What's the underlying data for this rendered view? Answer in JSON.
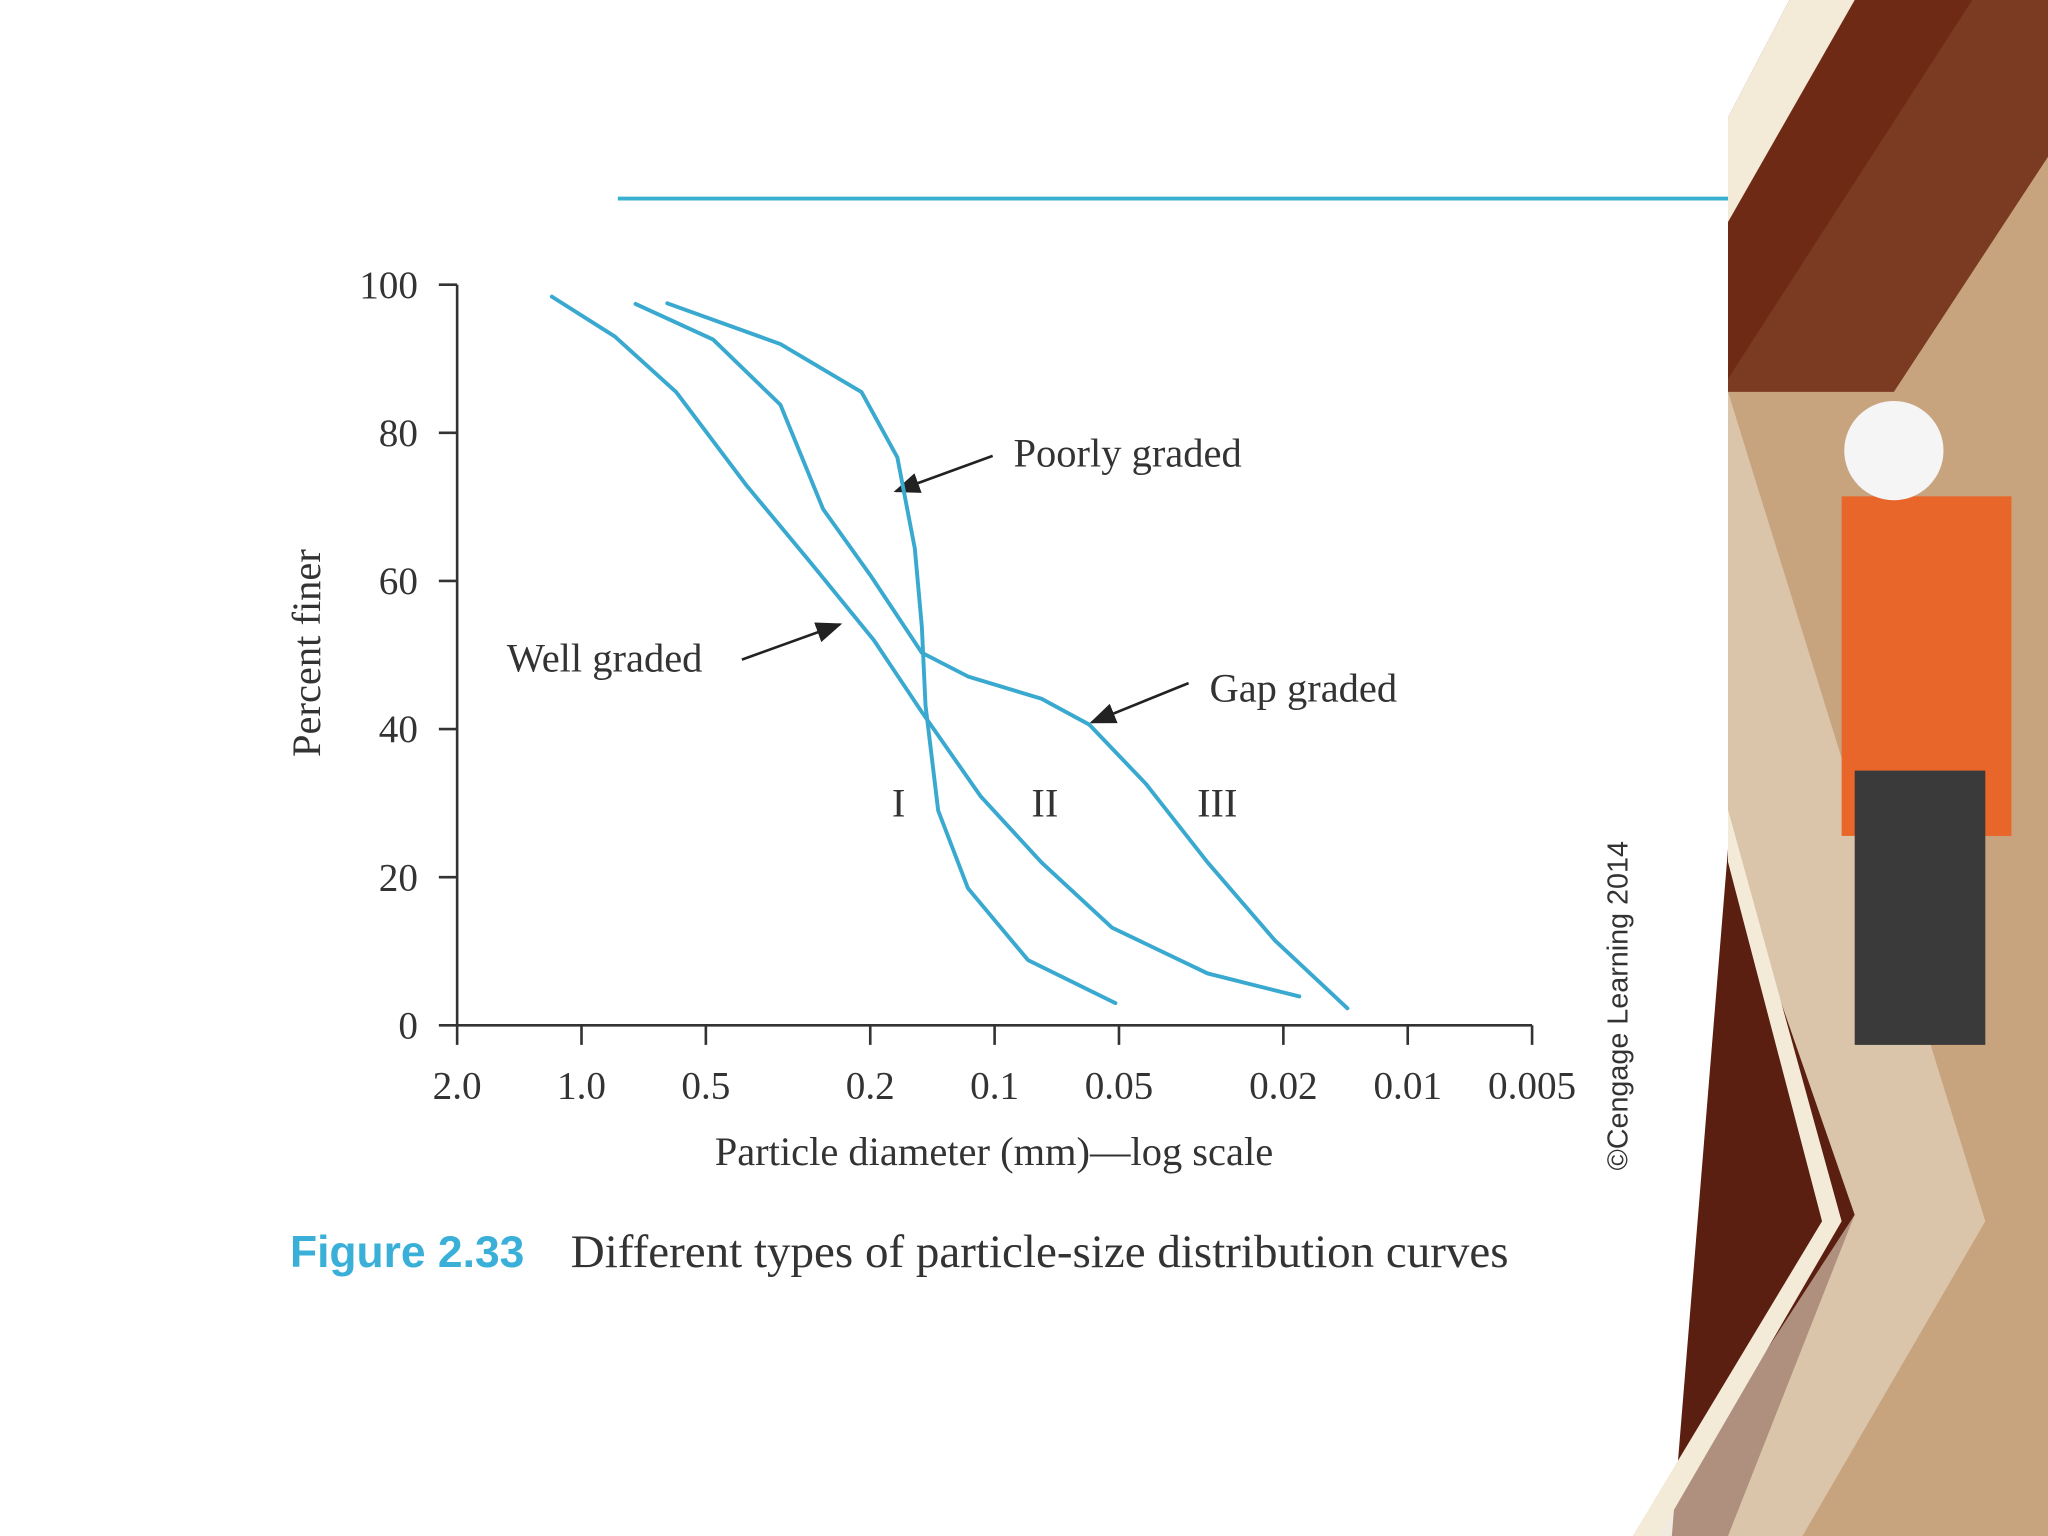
{
  "chart_data": {
    "type": "line",
    "title": "Different types of particle-size distribution curves",
    "figure_label": "Figure 2.33",
    "x_label": "Particle diameter (mm)—log scale",
    "y_label": "Percent finer",
    "credit": "©Cengage Learning 2014",
    "xscale": "log",
    "xlim": [
      2,
      0.005
    ],
    "xticks": [
      {
        "value": 2,
        "label": "2.0"
      },
      {
        "value": 1,
        "label": "1.0"
      },
      0.5,
      0.2,
      0.1,
      0.05,
      0.02,
      0.01,
      0.005
    ],
    "ylim": [
      0,
      100
    ],
    "yticks": [
      0,
      20,
      40,
      60,
      80,
      100
    ],
    "annotations": [
      "Poorly graded",
      "Well graded",
      "Gap graded",
      "I",
      "II",
      "III"
    ],
    "series": [
      {
        "name": "I",
        "color": "#3aa9d0",
        "x": [
          0.62,
          0.33,
          0.21,
          0.172,
          0.156,
          0.15,
          0.147,
          0.137,
          0.116,
          0.083,
          0.051
        ],
        "values": [
          97.5,
          92,
          85.5,
          76.7,
          64.4,
          53.8,
          43.2,
          29,
          18.5,
          8.8,
          3
        ]
      },
      {
        "name": "II",
        "color": "#3aa9d0",
        "x": [
          1.18,
          0.83,
          0.59,
          0.4,
          0.28,
          0.196,
          0.15,
          0.108,
          0.077,
          0.052,
          0.0305,
          0.0183
        ],
        "values": [
          98.4,
          93,
          85.5,
          73,
          62.6,
          52,
          42.3,
          30.9,
          22,
          13.2,
          7,
          3.9
        ]
      },
      {
        "name": "III",
        "color": "#3aa9d0",
        "x": [
          0.74,
          0.48,
          0.33,
          0.26,
          0.2,
          0.15,
          0.116,
          0.077,
          0.059,
          0.043,
          0.0305,
          0.021,
          0.014
        ],
        "values": [
          97.4,
          92.6,
          83.8,
          69.7,
          60.8,
          50.3,
          47.1,
          44.1,
          40.6,
          32.6,
          22,
          11.5,
          2.3
        ]
      }
    ]
  }
}
